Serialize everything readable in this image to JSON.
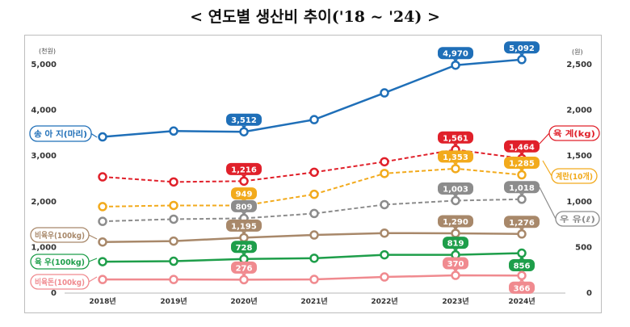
{
  "title": "< 연도별 생산비 추이('18 ~ '24) >",
  "chart_data": {
    "type": "line",
    "title": "< 연도별 생산비 추이('18 ~ '24) >",
    "categories": [
      "2018년",
      "2019년",
      "2020년",
      "2021년",
      "2022년",
      "2023년",
      "2024년"
    ],
    "left_axis": {
      "unit": "(천원)",
      "ylim": [
        0,
        5000
      ],
      "ticks": [
        "0",
        "1,000",
        "2,000",
        "3,000",
        "4,000",
        "5,000"
      ]
    },
    "right_axis": {
      "unit": "(원)",
      "ylim": [
        0,
        2500
      ],
      "ticks": [
        "0",
        "500",
        "1,000",
        "1,500",
        "2,000",
        "2,500"
      ]
    },
    "grid": false,
    "series": [
      {
        "name": "송 아 지(마리)",
        "axis": "left",
        "color": "#1f6fb8",
        "dashed": false,
        "values": [
          3400,
          3529,
          3512,
          3778,
          4363,
          4970,
          5092
        ],
        "labeled": [
          2,
          5,
          6
        ],
        "labels": [
          "3,512",
          "4,970",
          "5,092"
        ]
      },
      {
        "name": "육 계(kg)",
        "axis": "right",
        "color": "#e0202a",
        "dashed": true,
        "values": [
          1263,
          1207,
          1216,
          1313,
          1428,
          1561,
          1464
        ],
        "labeled": [
          2,
          5,
          6
        ],
        "labels": [
          "1,216",
          "1,561",
          "1,464"
        ]
      },
      {
        "name": "계란(10개)",
        "axis": "right",
        "color": "#f2aa1c",
        "dashed": true,
        "values": [
          937,
          950,
          949,
          1072,
          1300,
          1353,
          1285
        ],
        "labeled": [
          2,
          5,
          6
        ],
        "labels": [
          "949",
          "1,353",
          "1,285"
        ]
      },
      {
        "name": "우 유(ℓ)",
        "axis": "right",
        "color": "#8c8c8c",
        "dashed": true,
        "values": [
          776,
          800,
          809,
          862,
          959,
          1003,
          1018
        ],
        "labeled": [
          2,
          5,
          6
        ],
        "labels": [
          "809",
          "1,003",
          "1,018"
        ]
      },
      {
        "name": "비육우(100kg)",
        "axis": "left",
        "color": "#a8886a",
        "dashed": false,
        "values": [
          1100,
          1120,
          1195,
          1254,
          1295,
          1290,
          1276
        ],
        "labeled": [
          2,
          5,
          6
        ],
        "labels": [
          "1,195",
          "1,290",
          "1,276"
        ]
      },
      {
        "name": "육 우(100kg)",
        "axis": "left",
        "color": "#1e9e4a",
        "dashed": false,
        "values": [
          670,
          680,
          728,
          745,
          820,
          819,
          856
        ],
        "labeled": [
          2,
          5,
          6
        ],
        "labels": [
          "728",
          "819",
          "856"
        ]
      },
      {
        "name": "비육돈(100kg)",
        "axis": "left",
        "color": "#f08a8f",
        "dashed": false,
        "values": [
          280,
          280,
          276,
          282,
          335,
          370,
          366
        ],
        "labeled": [
          2,
          5,
          6
        ],
        "labels": [
          "276",
          "370",
          "366"
        ]
      }
    ]
  }
}
